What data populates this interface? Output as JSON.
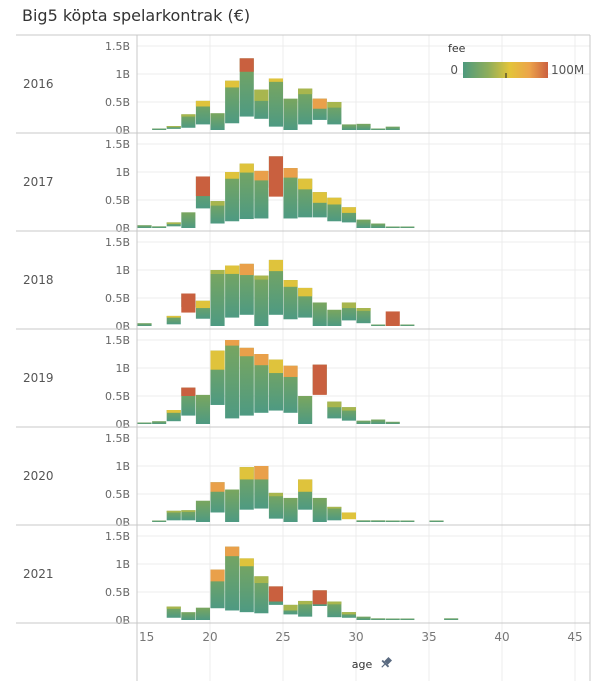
{
  "title": "Big5 köpta spelarkontrak (€)",
  "legend": {
    "title": "fee",
    "min_label": "0",
    "max_label": "100M",
    "colors": [
      "#4e9a7e",
      "#8fae5a",
      "#e3c43a",
      "#eca44a",
      "#cb6040"
    ]
  },
  "chart_data": {
    "type": "bar",
    "subtype": "stacked-histogram-small-multiples",
    "title": "Big5 köpta spelarkontrak (€)",
    "xlabel": "age",
    "ylabel": "",
    "x_ticks": [
      15,
      20,
      25,
      30,
      35,
      40,
      45
    ],
    "x_tick_labels": [
      "15",
      "20",
      "25",
      "30",
      "35",
      "40",
      "45"
    ],
    "xlim": [
      15,
      46
    ],
    "y_ticks": [
      0,
      0.5,
      1,
      1.5
    ],
    "y_tick_labels": [
      "0B",
      "0.5B",
      "1B",
      "1.5B"
    ],
    "ylim": [
      0,
      1.7
    ],
    "y_unit": "billion €",
    "color_legend": "fee (0 to 100M)",
    "grid": true,
    "panels": [
      {
        "year": "2016",
        "bars": [
          {
            "age": 16,
            "total": 0.01,
            "top": 0.0,
            "cap": "g"
          },
          {
            "age": 17,
            "total": 0.07,
            "top": 0.02,
            "cap": "y1"
          },
          {
            "age": 18,
            "total": 0.28,
            "top": 0.04,
            "cap": "y1"
          },
          {
            "age": 19,
            "total": 0.52,
            "top": 0.1,
            "cap": "y"
          },
          {
            "age": 20,
            "total": 0.3,
            "top": 0.0,
            "cap": "g"
          },
          {
            "age": 21,
            "total": 0.88,
            "top": 0.12,
            "cap": "y"
          },
          {
            "age": 22,
            "total": 1.28,
            "top": 0.24,
            "cap": "r"
          },
          {
            "age": 23,
            "total": 0.72,
            "top": 0.2,
            "cap": "y1"
          },
          {
            "age": 24,
            "total": 0.92,
            "top": 0.06,
            "cap": "y"
          },
          {
            "age": 25,
            "total": 0.56,
            "top": 0.0,
            "cap": "g"
          },
          {
            "age": 26,
            "total": 0.74,
            "top": 0.1,
            "cap": "y1"
          },
          {
            "age": 27,
            "total": 0.56,
            "top": 0.18,
            "cap": "o"
          },
          {
            "age": 28,
            "total": 0.5,
            "top": 0.1,
            "cap": "y1"
          },
          {
            "age": 29,
            "total": 0.1,
            "top": 0.0,
            "cap": "g"
          },
          {
            "age": 30,
            "total": 0.11,
            "top": 0.0,
            "cap": "g"
          },
          {
            "age": 31,
            "total": 0.01,
            "top": 0.0,
            "cap": "g"
          },
          {
            "age": 32,
            "total": 0.06,
            "top": 0.0,
            "cap": "g"
          }
        ]
      },
      {
        "year": "2017",
        "bars": [
          {
            "age": 15,
            "total": 0.05,
            "top": 0.0,
            "cap": "g"
          },
          {
            "age": 16,
            "total": 0.03,
            "top": 0.0,
            "cap": "g"
          },
          {
            "age": 17,
            "total": 0.1,
            "top": 0.03,
            "cap": "y1"
          },
          {
            "age": 18,
            "total": 0.28,
            "top": 0.0,
            "cap": "g"
          },
          {
            "age": 19,
            "total": 0.92,
            "top": 0.35,
            "cap": "r"
          },
          {
            "age": 20,
            "total": 0.48,
            "top": 0.08,
            "cap": "y1"
          },
          {
            "age": 21,
            "total": 1.0,
            "top": 0.12,
            "cap": "y"
          },
          {
            "age": 22,
            "total": 1.15,
            "top": 0.16,
            "cap": "y"
          },
          {
            "age": 23,
            "total": 1.02,
            "top": 0.17,
            "cap": "o"
          },
          {
            "age": 24,
            "total": 1.28,
            "top": 0.72,
            "cap": "r"
          },
          {
            "age": 25,
            "total": 1.07,
            "top": 0.17,
            "cap": "o"
          },
          {
            "age": 26,
            "total": 0.88,
            "top": 0.19,
            "cap": "y"
          },
          {
            "age": 27,
            "total": 0.64,
            "top": 0.19,
            "cap": "y"
          },
          {
            "age": 28,
            "total": 0.54,
            "top": 0.12,
            "cap": "y"
          },
          {
            "age": 29,
            "total": 0.37,
            "top": 0.1,
            "cap": "y"
          },
          {
            "age": 30,
            "total": 0.15,
            "top": 0.0,
            "cap": "g"
          },
          {
            "age": 31,
            "total": 0.08,
            "top": 0.0,
            "cap": "g"
          },
          {
            "age": 32,
            "total": 0.01,
            "top": 0.0,
            "cap": "g"
          },
          {
            "age": 33,
            "total": 0.01,
            "top": 0.0,
            "cap": "g"
          }
        ]
      },
      {
        "year": "2018",
        "bars": [
          {
            "age": 15,
            "total": 0.05,
            "top": 0.0,
            "cap": "g"
          },
          {
            "age": 17,
            "total": 0.18,
            "top": 0.03,
            "cap": "y"
          },
          {
            "age": 18,
            "total": 0.58,
            "top": 0.34,
            "cap": "r"
          },
          {
            "age": 19,
            "total": 0.45,
            "top": 0.13,
            "cap": "y"
          },
          {
            "age": 20,
            "total": 1.0,
            "top": 0.0,
            "cap": "y1"
          },
          {
            "age": 21,
            "total": 1.08,
            "top": 0.15,
            "cap": "y"
          },
          {
            "age": 22,
            "total": 1.11,
            "top": 0.2,
            "cap": "o"
          },
          {
            "age": 23,
            "total": 0.9,
            "top": 0.0,
            "cap": "y1"
          },
          {
            "age": 24,
            "total": 1.18,
            "top": 0.2,
            "cap": "y"
          },
          {
            "age": 25,
            "total": 0.82,
            "top": 0.12,
            "cap": "y"
          },
          {
            "age": 26,
            "total": 0.68,
            "top": 0.15,
            "cap": "y"
          },
          {
            "age": 27,
            "total": 0.42,
            "top": 0.0,
            "cap": "g"
          },
          {
            "age": 28,
            "total": 0.29,
            "top": 0.0,
            "cap": "g"
          },
          {
            "age": 29,
            "total": 0.42,
            "top": 0.1,
            "cap": "y1"
          },
          {
            "age": 30,
            "total": 0.32,
            "top": 0.05,
            "cap": "y1"
          },
          {
            "age": 31,
            "total": 0.01,
            "top": 0.0,
            "cap": "g"
          },
          {
            "age": 32,
            "total": 0.26,
            "top": 0.26,
            "cap": "r"
          },
          {
            "age": 33,
            "total": 0.01,
            "top": 0.0,
            "cap": "g"
          }
        ]
      },
      {
        "year": "2019",
        "bars": [
          {
            "age": 15,
            "total": 0.01,
            "top": 0.0,
            "cap": "g"
          },
          {
            "age": 16,
            "total": 0.05,
            "top": 0.0,
            "cap": "g"
          },
          {
            "age": 17,
            "total": 0.25,
            "top": 0.05,
            "cap": "y"
          },
          {
            "age": 18,
            "total": 0.65,
            "top": 0.15,
            "cap": "r"
          },
          {
            "age": 19,
            "total": 0.52,
            "top": 0.0,
            "cap": "g"
          },
          {
            "age": 20,
            "total": 1.31,
            "top": 0.34,
            "cap": "y"
          },
          {
            "age": 21,
            "total": 1.5,
            "top": 0.1,
            "cap": "o"
          },
          {
            "age": 22,
            "total": 1.36,
            "top": 0.15,
            "cap": "o"
          },
          {
            "age": 23,
            "total": 1.25,
            "top": 0.2,
            "cap": "o"
          },
          {
            "age": 24,
            "total": 1.15,
            "top": 0.24,
            "cap": "y"
          },
          {
            "age": 25,
            "total": 1.04,
            "top": 0.2,
            "cap": "o"
          },
          {
            "age": 26,
            "total": 0.5,
            "top": 0.0,
            "cap": "g"
          },
          {
            "age": 27,
            "total": 1.06,
            "top": 0.54,
            "cap": "r"
          },
          {
            "age": 28,
            "total": 0.4,
            "top": 0.1,
            "cap": "y1"
          },
          {
            "age": 29,
            "total": 0.3,
            "top": 0.06,
            "cap": "y1"
          },
          {
            "age": 30,
            "total": 0.06,
            "top": 0.0,
            "cap": "g"
          },
          {
            "age": 31,
            "total": 0.08,
            "top": 0.0,
            "cap": "g"
          },
          {
            "age": 32,
            "total": 0.04,
            "top": 0.0,
            "cap": "g"
          }
        ]
      },
      {
        "year": "2020",
        "bars": [
          {
            "age": 16,
            "total": 0.01,
            "top": 0.0,
            "cap": "g"
          },
          {
            "age": 17,
            "total": 0.2,
            "top": 0.03,
            "cap": "y1"
          },
          {
            "age": 18,
            "total": 0.21,
            "top": 0.03,
            "cap": "y1"
          },
          {
            "age": 19,
            "total": 0.38,
            "top": 0.0,
            "cap": "g"
          },
          {
            "age": 20,
            "total": 0.71,
            "top": 0.17,
            "cap": "o"
          },
          {
            "age": 21,
            "total": 0.58,
            "top": 0.0,
            "cap": "g"
          },
          {
            "age": 22,
            "total": 0.98,
            "top": 0.22,
            "cap": "y"
          },
          {
            "age": 23,
            "total": 1.0,
            "top": 0.24,
            "cap": "o"
          },
          {
            "age": 24,
            "total": 0.52,
            "top": 0.06,
            "cap": "y1"
          },
          {
            "age": 25,
            "total": 0.43,
            "top": 0.0,
            "cap": "g"
          },
          {
            "age": 26,
            "total": 0.76,
            "top": 0.22,
            "cap": "y"
          },
          {
            "age": 27,
            "total": 0.43,
            "top": 0.0,
            "cap": "g"
          },
          {
            "age": 28,
            "total": 0.27,
            "top": 0.03,
            "cap": "y1"
          },
          {
            "age": 29,
            "total": 0.17,
            "top": 0.12,
            "cap": "y"
          },
          {
            "age": 30,
            "total": 0.03,
            "top": 0.0,
            "cap": "g"
          },
          {
            "age": 31,
            "total": 0.03,
            "top": 0.0,
            "cap": "g"
          },
          {
            "age": 32,
            "total": 0.01,
            "top": 0.0,
            "cap": "g"
          },
          {
            "age": 33,
            "total": 0.01,
            "top": 0.0,
            "cap": "g"
          },
          {
            "age": 35,
            "total": 0.01,
            "top": 0.0,
            "cap": "g"
          }
        ]
      },
      {
        "year": "2021",
        "bars": [
          {
            "age": 17,
            "total": 0.24,
            "top": 0.04,
            "cap": "y1"
          },
          {
            "age": 18,
            "total": 0.14,
            "top": 0.0,
            "cap": "g"
          },
          {
            "age": 19,
            "total": 0.22,
            "top": 0.0,
            "cap": "g"
          },
          {
            "age": 20,
            "total": 0.9,
            "top": 0.21,
            "cap": "o"
          },
          {
            "age": 21,
            "total": 1.31,
            "top": 0.17,
            "cap": "o"
          },
          {
            "age": 22,
            "total": 1.1,
            "top": 0.14,
            "cap": "y"
          },
          {
            "age": 23,
            "total": 0.78,
            "top": 0.12,
            "cap": "y1"
          },
          {
            "age": 24,
            "total": 0.6,
            "top": 0.27,
            "cap": "r"
          },
          {
            "age": 25,
            "total": 0.27,
            "top": 0.1,
            "cap": "y1"
          },
          {
            "age": 26,
            "total": 0.34,
            "top": 0.06,
            "cap": "y1"
          },
          {
            "age": 27,
            "total": 0.53,
            "top": 0.25,
            "cap": "r"
          },
          {
            "age": 28,
            "total": 0.33,
            "top": 0.05,
            "cap": "y1"
          },
          {
            "age": 29,
            "total": 0.14,
            "top": 0.04,
            "cap": "y1"
          },
          {
            "age": 30,
            "total": 0.06,
            "top": 0.0,
            "cap": "g"
          },
          {
            "age": 31,
            "total": 0.03,
            "top": 0.0,
            "cap": "g"
          },
          {
            "age": 32,
            "total": 0.01,
            "top": 0.0,
            "cap": "g"
          },
          {
            "age": 33,
            "total": 0.01,
            "top": 0.0,
            "cap": "g"
          },
          {
            "age": 36,
            "total": 0.03,
            "top": 0.0,
            "cap": "g"
          }
        ]
      }
    ]
  }
}
